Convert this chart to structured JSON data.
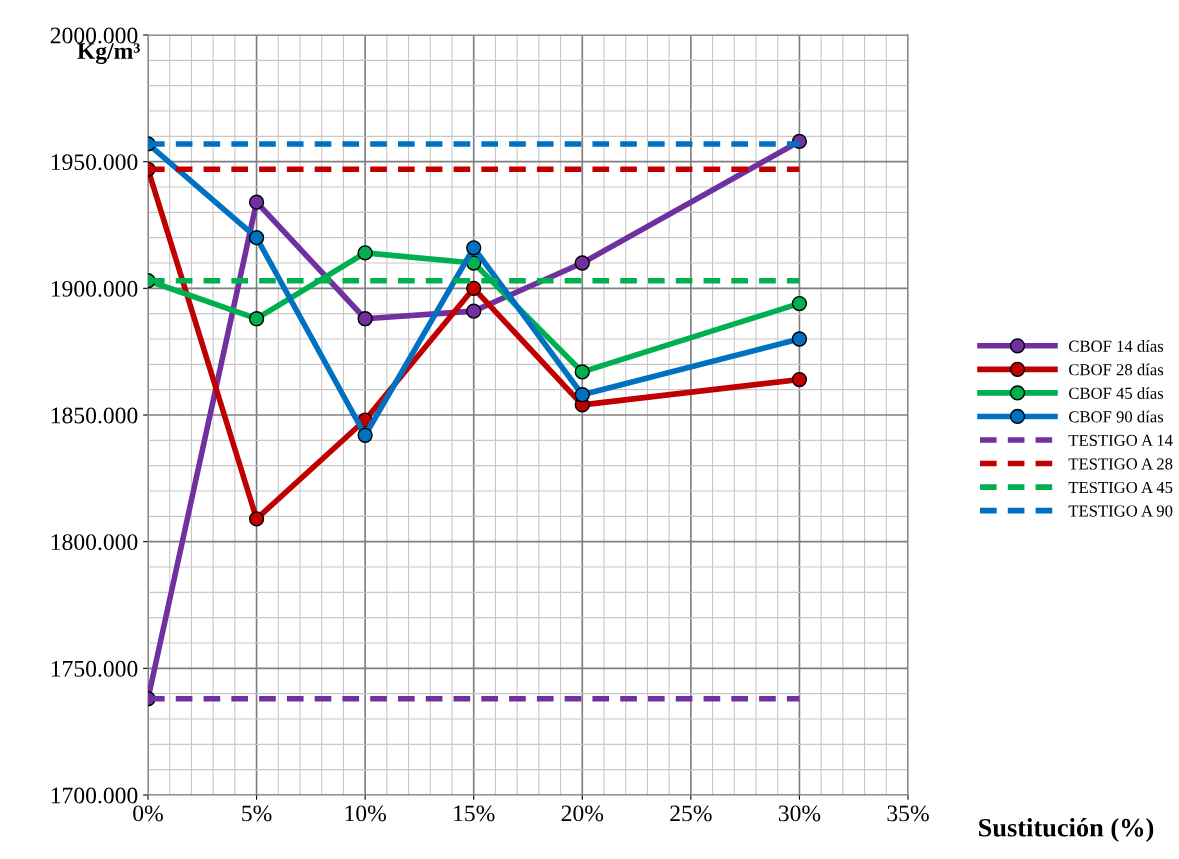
{
  "chart_data": {
    "type": "line",
    "xlabel": "Sustitución (%)",
    "ylabel": "Kg/m³",
    "x": [
      0,
      5,
      10,
      15,
      20,
      30
    ],
    "xlim": [
      0,
      35
    ],
    "xticks": [
      {
        "value": 0,
        "label": "0%"
      },
      {
        "value": 5,
        "label": "5%"
      },
      {
        "value": 10,
        "label": "10%"
      },
      {
        "value": 15,
        "label": "15%"
      },
      {
        "value": 20,
        "label": "20%"
      },
      {
        "value": 25,
        "label": "25%"
      },
      {
        "value": 30,
        "label": "30%"
      },
      {
        "value": 35,
        "label": "35%"
      }
    ],
    "ylim": [
      1700,
      2000
    ],
    "yticks": [
      {
        "value": 1700,
        "label": "1700.000"
      },
      {
        "value": 1750,
        "label": "1750.000"
      },
      {
        "value": 1800,
        "label": "1800.000"
      },
      {
        "value": 1850,
        "label": "1850.000"
      },
      {
        "value": 1900,
        "label": "1900.000"
      },
      {
        "value": 1950,
        "label": "1950.000"
      },
      {
        "value": 2000,
        "label": "2000.000"
      }
    ],
    "grid": true,
    "legend": "right",
    "marker": "circle",
    "line_style": "solid",
    "series": [
      {
        "name": "CBOF 14 días",
        "color": "#7030a0",
        "values": [
          1738,
          1934,
          1888,
          1891,
          1910,
          1958
        ]
      },
      {
        "name": "CBOF 28 días",
        "color": "#c00000",
        "values": [
          1947,
          1809,
          1848,
          1900,
          1854,
          1864
        ]
      },
      {
        "name": "CBOF 45 días",
        "color": "#00b050",
        "values": [
          1903,
          1888,
          1914,
          1910,
          1867,
          1894
        ]
      },
      {
        "name": "CBOF 90 días",
        "color": "#0070c0",
        "values": [
          1957,
          1920,
          1842,
          1916,
          1858,
          1880
        ]
      },
      {
        "name": "TESTIGO A 14",
        "color": "#7030a0",
        "marker": "none",
        "line_style": "dashed",
        "values": [
          1738,
          1738,
          1738,
          1738,
          1738,
          1738
        ]
      },
      {
        "name": "TESTIGO A 28",
        "color": "#c00000",
        "marker": "none",
        "line_style": "dashed",
        "values": [
          1947,
          1947,
          1947,
          1947,
          1947,
          1947
        ]
      },
      {
        "name": "TESTIGO A 45",
        "color": "#00b050",
        "marker": "none",
        "line_style": "dashed",
        "values": [
          1903,
          1903,
          1903,
          1903,
          1903,
          1903
        ]
      },
      {
        "name": "TESTIGO A 90",
        "color": "#0070c0",
        "marker": "none",
        "line_style": "dashed",
        "values": [
          1957,
          1957,
          1957,
          1957,
          1957,
          1957
        ]
      }
    ]
  }
}
